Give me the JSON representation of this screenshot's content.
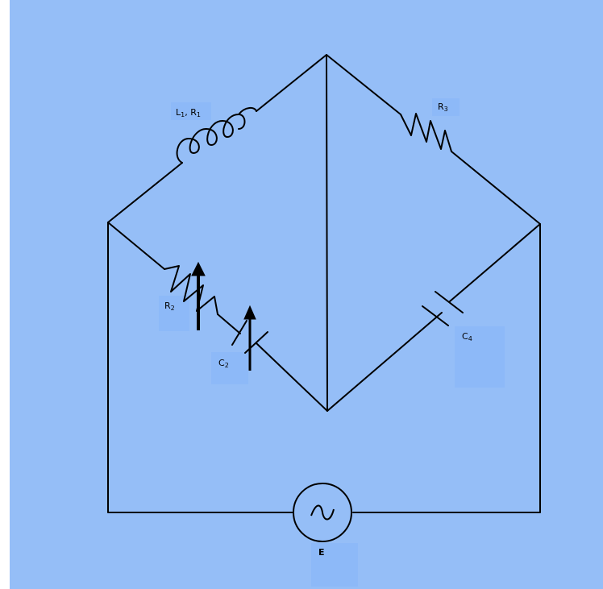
{
  "colors": {
    "background": "#95bef7",
    "label_box": "#8db9f8",
    "wire": "#000000"
  },
  "components": {
    "L1R1": {
      "main1": "L",
      "sub1": "1",
      "sep": ", ",
      "main2": "R",
      "sub2": "1"
    },
    "R3": {
      "main": "R",
      "sub": "3"
    },
    "R2": {
      "main": "R",
      "sub": "2"
    },
    "C2": {
      "main": "C",
      "sub": "2"
    },
    "C4": {
      "main": "C",
      "sub": "4"
    },
    "E": {
      "main": "E"
    }
  },
  "icons": {
    "source": "ac-source-icon"
  }
}
